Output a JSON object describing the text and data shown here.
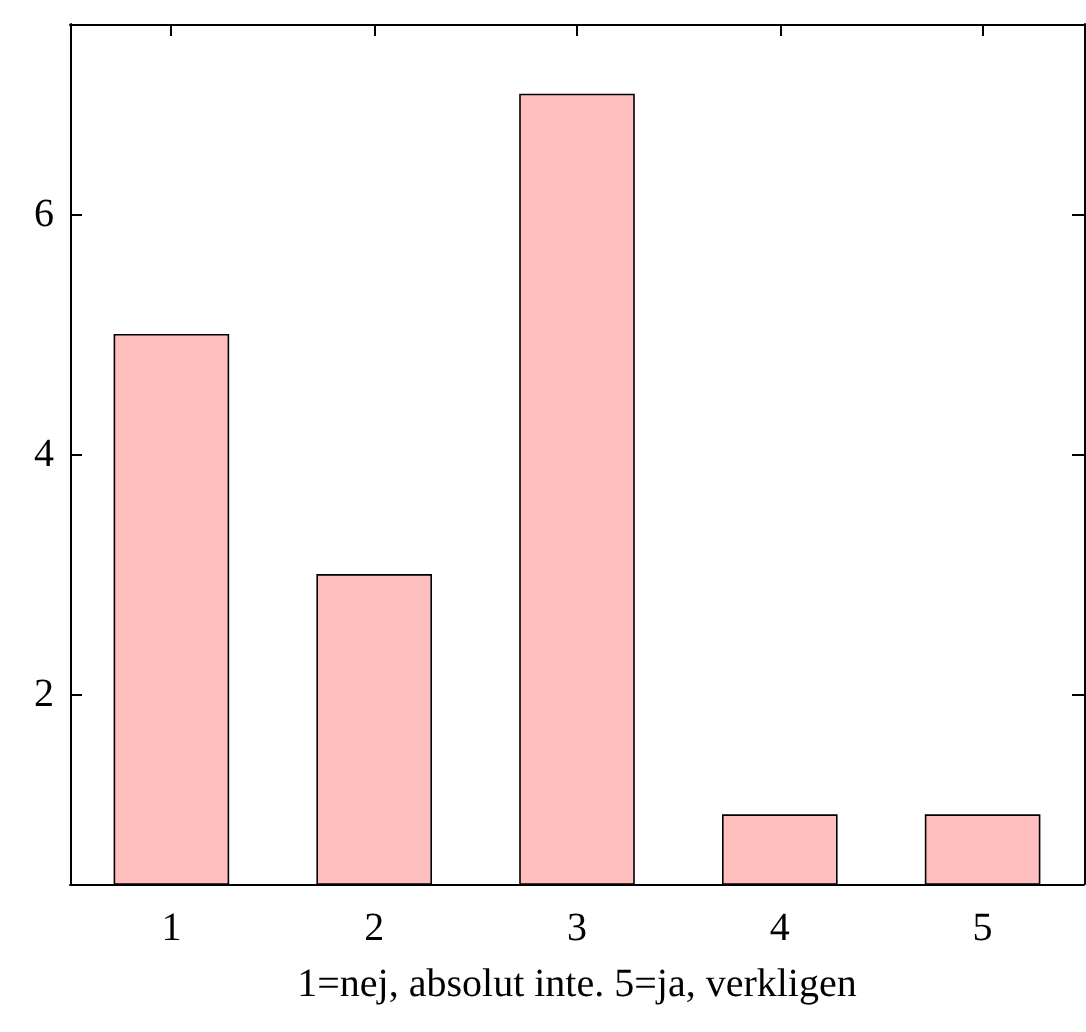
{
  "chart_data": {
    "type": "bar",
    "xlabel": "1=nej, absolut inte. 5=ja, verkligen",
    "categories": [
      "1",
      "2",
      "3",
      "4",
      "5"
    ],
    "values": [
      5,
      3,
      7,
      1,
      1
    ],
    "color": "#ffbfbf",
    "ylim": [
      0.42,
      7.58
    ],
    "yticks": [
      2,
      4,
      6
    ],
    "grid": false
  }
}
